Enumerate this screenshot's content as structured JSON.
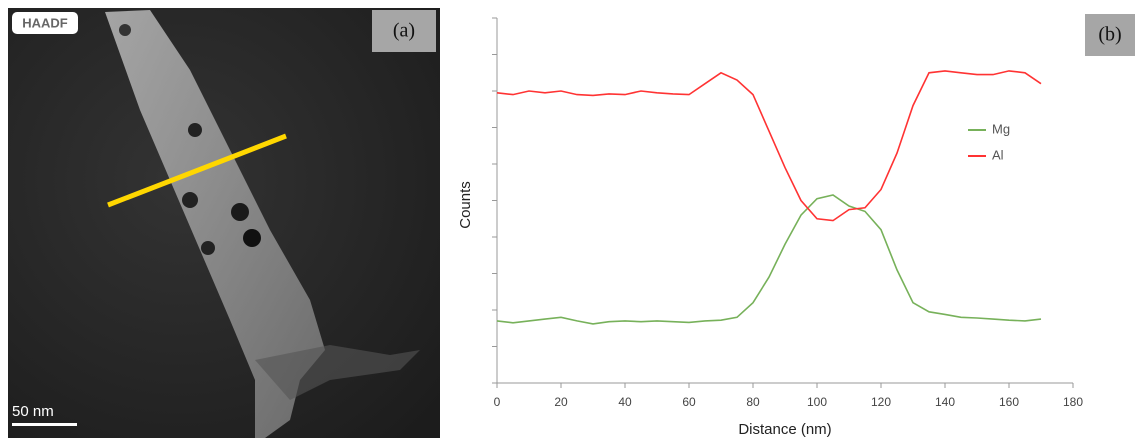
{
  "image": {
    "label": "HAADF",
    "panel": "(a)",
    "scale_bar": "50 nm"
  },
  "chart_data": {
    "type": "line",
    "panel": "(b)",
    "x_label": "Distance (nm)",
    "y_label": "Counts",
    "x": [
      0,
      5,
      10,
      15,
      20,
      25,
      30,
      35,
      40,
      45,
      50,
      55,
      60,
      65,
      70,
      75,
      80,
      85,
      90,
      95,
      100,
      105,
      110,
      115,
      120,
      125,
      130,
      135,
      140,
      145,
      150,
      155,
      160,
      165,
      170
    ],
    "series": [
      {
        "name": "Mg",
        "color": "#77b15a",
        "values": [
          1.7,
          1.65,
          1.7,
          1.75,
          1.8,
          1.7,
          1.62,
          1.68,
          1.7,
          1.68,
          1.7,
          1.68,
          1.66,
          1.7,
          1.72,
          1.8,
          2.2,
          2.9,
          3.8,
          4.6,
          5.05,
          5.15,
          4.85,
          4.7,
          4.2,
          3.1,
          2.2,
          1.95,
          1.88,
          1.8,
          1.78,
          1.75,
          1.72,
          1.7,
          1.75
        ]
      },
      {
        "name": "Al",
        "color": "#ff3333",
        "values": [
          7.95,
          7.9,
          8.0,
          7.95,
          8.0,
          7.9,
          7.88,
          7.92,
          7.9,
          8.0,
          7.95,
          7.92,
          7.9,
          8.2,
          8.5,
          8.3,
          7.9,
          6.9,
          5.9,
          5.0,
          4.5,
          4.45,
          4.75,
          4.8,
          5.3,
          6.3,
          7.6,
          8.5,
          8.55,
          8.5,
          8.45,
          8.45,
          8.55,
          8.5,
          8.2
        ]
      }
    ],
    "xlim": [
      0,
      180
    ],
    "xticks": [
      0,
      20,
      40,
      60,
      80,
      100,
      120,
      140,
      160,
      180
    ],
    "ylim": [
      0,
      10
    ],
    "yticks": [
      0,
      1,
      2,
      3,
      4,
      5,
      6,
      7,
      8,
      9,
      10
    ]
  }
}
